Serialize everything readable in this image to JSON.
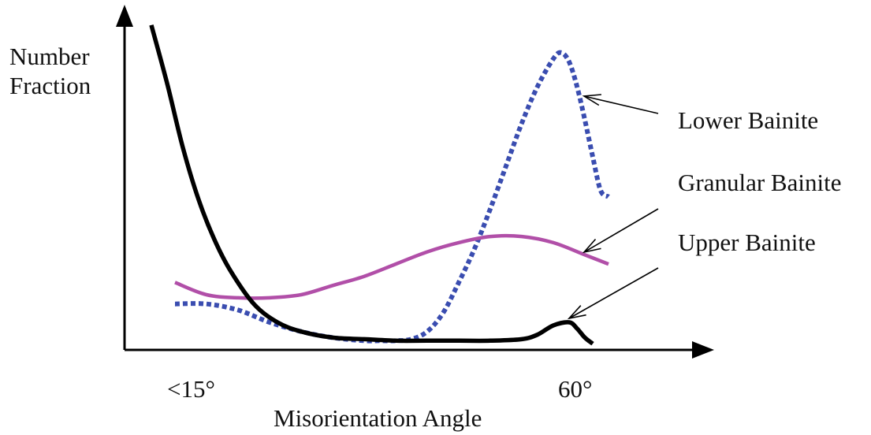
{
  "chart_data": {
    "type": "line",
    "title": "",
    "ylabel_lines": [
      "Number",
      "Fraction"
    ],
    "xlabel": "Misorientation Angle",
    "x_ticks": [
      "<15°",
      "60°"
    ],
    "grid": false,
    "legend": "annotations with arrows, right side",
    "series": [
      {
        "name": "Lower Bainite",
        "style": "dotted",
        "color": "#3A4DB0",
        "x": [
          0,
          4,
          8,
          12,
          16,
          20,
          24,
          26,
          28,
          30,
          32,
          34,
          36,
          38,
          40,
          42,
          44,
          46,
          48,
          49,
          50,
          51,
          52,
          53,
          54,
          55
        ],
        "y": [
          0.15,
          0.15,
          0.13,
          0.09,
          0.06,
          0.04,
          0.03,
          0.03,
          0.03,
          0.035,
          0.06,
          0.12,
          0.22,
          0.33,
          0.46,
          0.6,
          0.74,
          0.86,
          0.95,
          0.97,
          0.94,
          0.86,
          0.75,
          0.63,
          0.52,
          0.5
        ]
      },
      {
        "name": "Granular Bainite",
        "style": "solid",
        "color": "#B14FA8",
        "x": [
          0,
          4,
          8,
          12,
          16,
          20,
          24,
          28,
          32,
          36,
          40,
          44,
          48,
          52,
          55
        ],
        "y": [
          0.22,
          0.18,
          0.17,
          0.17,
          0.18,
          0.21,
          0.24,
          0.28,
          0.32,
          0.35,
          0.37,
          0.37,
          0.35,
          0.31,
          0.28
        ]
      },
      {
        "name": "Upper Bainite",
        "style": "solid",
        "color": "#000000",
        "x": [
          -3,
          -1,
          1,
          3,
          5,
          7,
          10,
          13,
          16,
          20,
          24,
          28,
          32,
          36,
          40,
          44,
          46,
          48,
          50,
          51,
          52,
          53
        ],
        "y": [
          1.06,
          0.87,
          0.66,
          0.49,
          0.36,
          0.26,
          0.15,
          0.09,
          0.06,
          0.04,
          0.035,
          0.03,
          0.03,
          0.03,
          0.03,
          0.035,
          0.05,
          0.08,
          0.09,
          0.07,
          0.04,
          0.02
        ]
      }
    ],
    "xlim": [
      -5,
      65
    ],
    "ylim": [
      0,
      1.08
    ]
  }
}
